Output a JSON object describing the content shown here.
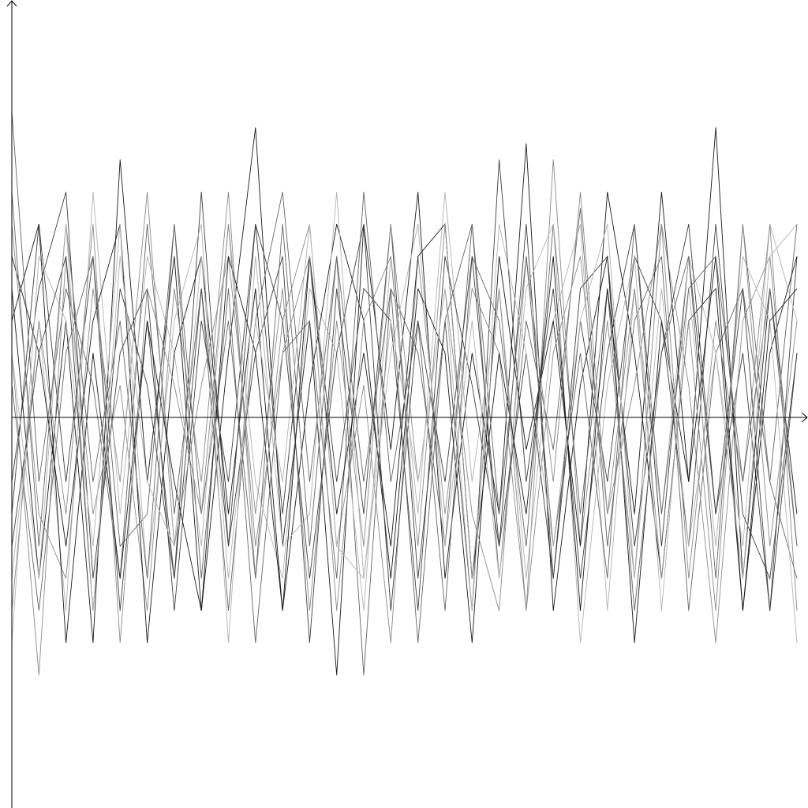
{
  "chart_data": {
    "type": "line",
    "title": "",
    "xlabel": "",
    "ylabel": "",
    "grid": false,
    "legend": "none",
    "axis_color": "#000000",
    "series_colors": [
      "#1a1a1a",
      "#404040",
      "#666666",
      "#8c8c8c",
      "#b3b3b3"
    ],
    "x": [
      0,
      1,
      2,
      3,
      4,
      5,
      6,
      7,
      8,
      9,
      10,
      11,
      12,
      13,
      14,
      15,
      16,
      17,
      18,
      19,
      20,
      21,
      22,
      23,
      24,
      25,
      26,
      27,
      28,
      29
    ],
    "xlim": [
      0,
      30
    ],
    "ylim": [
      -1.2,
      1.2
    ],
    "series": [
      {
        "values": [
          0.4,
          -0.5,
          0.3,
          -0.7,
          0.8,
          -0.2,
          0.5,
          -0.6,
          0.2,
          0.9,
          -0.4,
          0.3,
          -0.8,
          0.6,
          -0.1,
          0.7,
          -0.5,
          0.2,
          -0.3,
          0.85,
          -0.6,
          0.1,
          0.5,
          -0.7,
          0.3,
          -0.2,
          0.9,
          -0.5,
          0.4,
          -0.3
        ]
      },
      {
        "values": [
          -0.3,
          0.6,
          -0.2,
          0.5,
          -0.6,
          0.3,
          -0.5,
          0.7,
          -0.4,
          0.2,
          0.5,
          -0.7,
          0.4,
          -0.3,
          0.6,
          -0.5,
          0.3,
          -0.6,
          0.8,
          -0.2,
          0.4,
          -0.5,
          0.2,
          0.6,
          -0.4,
          0.5,
          -0.3,
          0.2,
          -0.6,
          0.5
        ]
      },
      {
        "values": [
          0.95,
          -0.2,
          0.4,
          0.1,
          -0.5,
          0.6,
          -0.3,
          0.4,
          -0.6,
          0.3,
          0.7,
          -0.2,
          0.5,
          -0.8,
          0.4,
          0.2,
          -0.4,
          0.6,
          -0.5,
          0.3,
          -0.1,
          0.65,
          -0.4,
          0.3,
          0.5,
          -0.6,
          0.2,
          0.4,
          -0.2,
          0.6
        ]
      },
      {
        "values": [
          0.2,
          -0.8,
          0.5,
          -0.3,
          0.1,
          -0.6,
          0.4,
          -0.2,
          0.7,
          -0.5,
          0.3,
          0.6,
          -0.4,
          0.1,
          -0.7,
          0.5,
          -0.3,
          0.4,
          0.2,
          -0.6,
          0.8,
          -0.4,
          0.3,
          -0.5,
          0.6,
          0.1,
          -0.7,
          0.3,
          0.5,
          -0.4
        ]
      },
      {
        "values": [
          -0.5,
          0.3,
          -0.6,
          0.7,
          -0.3,
          0.5,
          0.2,
          -0.4,
          0.6,
          -0.2,
          -0.5,
          0.4,
          0.2,
          -0.6,
          0.5,
          -0.3,
          0.7,
          -0.2,
          0.4,
          -0.5,
          0.3,
          0.6,
          -0.6,
          0.4,
          -0.3,
          0.5,
          0.2,
          -0.4,
          0.6,
          0.3
        ]
      },
      {
        "values": [
          0.5,
          0.2,
          -0.4,
          0.3,
          0.6,
          -0.7,
          0.2,
          0.5,
          -0.3,
          0.4,
          -0.6,
          0.1,
          0.6,
          0.3,
          -0.5,
          0.4,
          0.2,
          -0.7,
          0.5,
          -0.1,
          0.3,
          -0.4,
          0.7,
          0.2,
          -0.5,
          0.3,
          0.4,
          -0.6,
          0.2,
          0.5
        ]
      },
      {
        "values": [
          -0.2,
          0.4,
          0.7,
          -0.5,
          0.2,
          0.4,
          -0.6,
          0.3,
          -0.2,
          0.6,
          -0.3,
          0.5,
          -0.2,
          0.4,
          0.3,
          -0.6,
          0.5,
          0.1,
          -0.4,
          0.6,
          -0.5,
          0.3,
          -0.2,
          0.5,
          0.3,
          -0.4,
          0.6,
          -0.3,
          -0.5,
          0.2
        ]
      },
      {
        "values": [
          0.1,
          -0.6,
          0.2,
          0.5,
          -0.4,
          -0.3,
          0.6,
          -0.5,
          0.4,
          -0.7,
          0.2,
          0.3,
          -0.5,
          0.7,
          -0.2,
          0.3,
          -0.6,
          0.5,
          0.3,
          -0.4,
          0.6,
          -0.3,
          0.4,
          -0.6,
          0.2,
          0.5,
          -0.5,
          0.6,
          -0.2,
          -0.5
        ]
      },
      {
        "values": [
          0.6,
          -0.3,
          -0.5,
          0.4,
          -0.2,
          0.7,
          -0.4,
          0.1,
          0.5,
          -0.3,
          0.4,
          -0.6,
          0.3,
          -0.4,
          0.6,
          -0.2,
          0.4,
          -0.3,
          -0.6,
          0.5,
          -0.2,
          0.7,
          -0.3,
          0.1,
          0.6,
          -0.5,
          0.3,
          -0.2,
          0.6,
          -0.6
        ]
      },
      {
        "values": [
          -0.7,
          0.5,
          0.3,
          -0.4,
          0.6,
          -0.5,
          0.3,
          0.6,
          -0.7,
          0.5,
          -0.4,
          -0.3,
          0.7,
          -0.5,
          0.2,
          0.6,
          -0.4,
          0.3,
          -0.5,
          0.4,
          0.6,
          -0.7,
          0.1,
          0.5,
          -0.6,
          0.4,
          -0.4,
          0.5,
          0.3,
          -0.7
        ]
      },
      {
        "values": [
          0.3,
          0.6,
          -0.7,
          0.2,
          -0.5,
          0.3,
          -0.2,
          -0.6,
          0.5,
          0.2,
          -0.6,
          0.5,
          -0.3,
          0.2,
          -0.4,
          0.5,
          0.6,
          -0.5,
          0.2,
          -0.3,
          0.5,
          -0.6,
          0.4,
          -0.3,
          0.7,
          -0.2,
          0.5,
          -0.6,
          0.3,
          0.4
        ]
      },
      {
        "values": [
          -0.4,
          0.2,
          0.5,
          -0.6,
          0.4,
          0.1,
          -0.5,
          0.4,
          -0.4,
          0.6,
          0.3,
          -0.5,
          0.2,
          0.6,
          -0.6,
          0.3,
          -0.2,
          0.5,
          -0.4,
          0.2,
          -0.5,
          0.4,
          0.5,
          -0.4,
          0.2,
          0.6,
          -0.3,
          0.4,
          -0.6,
          0.2
        ]
      },
      {
        "values": [
          0.7,
          -0.4,
          0.6,
          -0.2,
          0.3,
          -0.5,
          0.6,
          -0.3,
          0.3,
          -0.5,
          0.6,
          -0.4,
          0.5,
          -0.2,
          0.4,
          -0.7,
          0.3,
          0.6,
          -0.3,
          0.5,
          -0.4,
          0.2,
          -0.5,
          0.6,
          -0.3,
          0.4,
          0.5,
          -0.2,
          0.4,
          -0.4
        ]
      },
      {
        "values": [
          -0.6,
          0.3,
          -0.3,
          0.6,
          -0.7,
          0.4,
          0.1,
          -0.3,
          0.6,
          -0.4,
          0.2,
          0.5,
          -0.6,
          0.3,
          0.5,
          -0.4,
          0.6,
          -0.5,
          0.4,
          -0.6,
          0.2,
          0.5,
          -0.3,
          0.4,
          -0.5,
          0.3,
          -0.6,
          0.6,
          -0.4,
          0.3
        ]
      },
      {
        "values": [
          0.2,
          -0.5,
          0.6,
          -0.6,
          0.5,
          -0.2,
          -0.4,
          0.5,
          -0.5,
          0.3,
          -0.2,
          0.6,
          -0.4,
          -0.5,
          0.3,
          -0.2,
          0.4,
          -0.6,
          0.6,
          0.2,
          -0.4,
          0.3,
          0.6,
          -0.5,
          0.4,
          -0.4,
          0.2,
          -0.5,
          0.5,
          0.6
        ]
      }
    ]
  }
}
